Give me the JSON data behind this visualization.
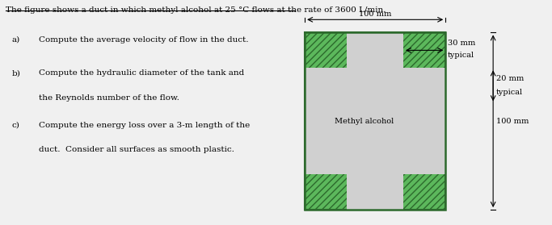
{
  "title": "The figure shows a duct in which methyl alcohol at 25 °C flows at the rate of 3600 L/min.",
  "q_a_letter": "a)",
  "q_a_text": "Compute the average velocity of flow in the duct.",
  "q_b_letter": "b)",
  "q_b_text1": "Compute the hydraulic diameter of the tank and",
  "q_b_text2": "the Reynolds number of the flow.",
  "q_c_letter": "c)",
  "q_c_text1": "Compute the energy loss over a 3-m length of the",
  "q_c_text2": "duct.  Consider all surfaces as smooth plastic.",
  "green_fc": "#5cb85c",
  "green_ec": "#2d6a2d",
  "fluid_fc": "#d0d0d0",
  "bg_color": "#f0f0f0",
  "fluid_label": "Methyl alcohol",
  "dim_top": "100 mm",
  "dim_30": "30 mm",
  "dim_30_sub": "typical",
  "dim_right": "100 mm",
  "dim_20": "20 mm",
  "dim_20_sub": "typical",
  "text_fs": 7.5,
  "label_fs": 7.0
}
